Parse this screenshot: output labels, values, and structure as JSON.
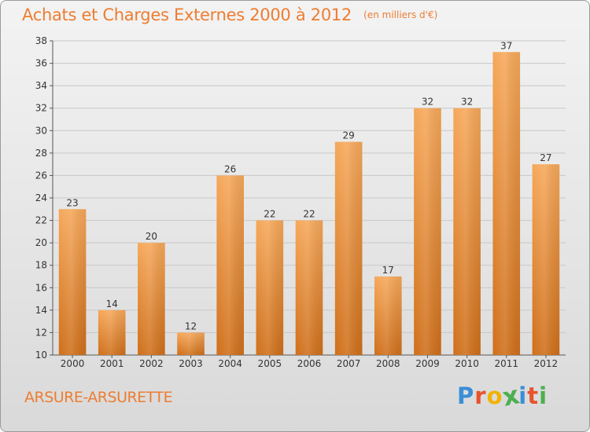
{
  "header": {
    "title": "Achats et Charges Externes 2000 à 2012",
    "subtitle": "(en milliers d'€)"
  },
  "footer": {
    "town": "ARSURE-ARSURETTE",
    "logo": "Proxiti",
    "logo_colors": [
      "#3a8fd6",
      "#e8522c",
      "#f2b200",
      "#4caf50",
      "#3a8fd6",
      "#e8522c",
      "#4caf50"
    ]
  },
  "colors": {
    "bar_top": "#f6a85a",
    "bar_bottom": "#cf6f1a",
    "accent": "#ed7d31",
    "grid": "#c8c8c8"
  },
  "chart_data": {
    "type": "bar",
    "title": "Achats et Charges Externes 2000 à 2012",
    "subtitle": "(en milliers d'€)",
    "categories": [
      "2000",
      "2001",
      "2002",
      "2003",
      "2004",
      "2005",
      "2006",
      "2007",
      "2008",
      "2009",
      "2010",
      "2011",
      "2012"
    ],
    "values": [
      23,
      14,
      20,
      12,
      26,
      22,
      22,
      29,
      17,
      32,
      32,
      37,
      27
    ],
    "ylim": [
      10,
      38
    ],
    "yticks": [
      10,
      12,
      14,
      16,
      18,
      20,
      22,
      24,
      26,
      28,
      30,
      32,
      34,
      36,
      38
    ],
    "grid": true,
    "legend": "none",
    "data_labels": true
  }
}
